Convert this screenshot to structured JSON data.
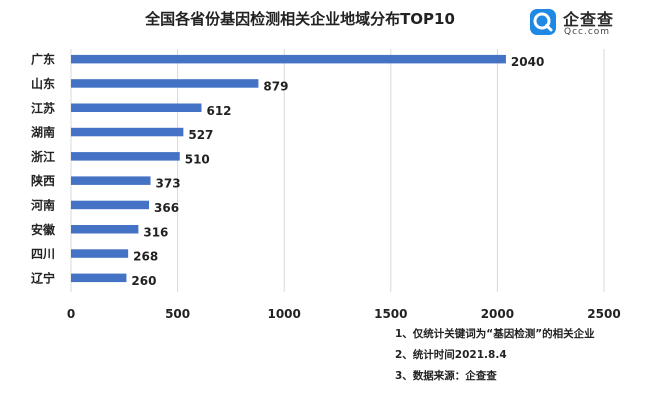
{
  "chart_data": {
    "type": "bar",
    "orientation": "horizontal",
    "title": "全国各省份基因检测相关企业地域分布TOP10",
    "categories": [
      "广东",
      "山东",
      "江苏",
      "湖南",
      "浙江",
      "陕西",
      "河南",
      "安徽",
      "四川",
      "辽宁"
    ],
    "values": [
      2040,
      879,
      612,
      527,
      510,
      373,
      366,
      316,
      268,
      260
    ],
    "xlim": [
      0,
      2500
    ],
    "xticks": [
      "0",
      "500",
      "1000",
      "1500",
      "2000",
      "2500"
    ],
    "grid": true,
    "bar_color": "#4472C4",
    "xlabel": "",
    "ylabel": ""
  },
  "logo": {
    "name": "企查查",
    "domain": "Qcc.com",
    "color": "#1E88E5"
  },
  "notes": [
    "1、仅统计关键词为“基因检测”的相关企业",
    "2、统计时间2021.8.4",
    "3、数据来源：企查查"
  ]
}
